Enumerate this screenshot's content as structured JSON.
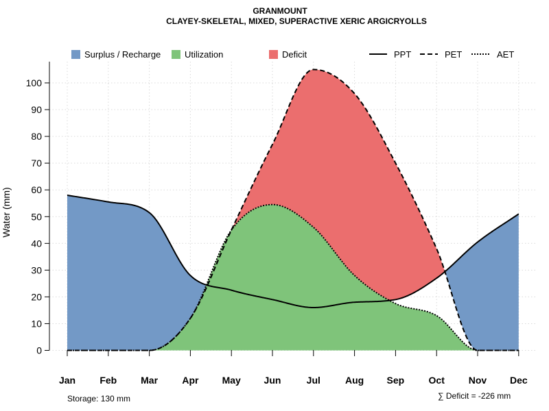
{
  "chart_data": {
    "type": "area",
    "title": "GRANMOUNT",
    "subtitle": "CLAYEY-SKELETAL, MIXED, SUPERACTIVE XERIC ARGICRYOLLS",
    "ylabel": "Water (mm)",
    "xlabel": "",
    "ylim": [
      0,
      108
    ],
    "yticks": [
      0,
      10,
      20,
      30,
      40,
      50,
      60,
      70,
      80,
      90,
      100
    ],
    "categories": [
      "Jan",
      "Feb",
      "Mar",
      "Apr",
      "May",
      "Jun",
      "Jul",
      "Aug",
      "Sep",
      "Oct",
      "Nov",
      "Dec"
    ],
    "series": [
      {
        "name": "PPT",
        "style": "solid",
        "values": [
          58,
          55.5,
          51.5,
          28,
          22.5,
          19,
          16,
          18,
          19,
          27,
          40.5,
          51
        ]
      },
      {
        "name": "PET",
        "style": "dashed",
        "values": [
          0,
          0,
          0,
          12,
          45,
          77,
          105,
          96,
          70,
          38,
          0,
          0
        ]
      },
      {
        "name": "AET",
        "style": "dotted",
        "values": [
          0,
          0,
          0,
          12,
          45,
          54.5,
          46,
          28,
          17.5,
          13,
          0,
          0
        ]
      }
    ],
    "fills": [
      {
        "name": "Surplus / Recharge",
        "color": "#7399c6"
      },
      {
        "name": "Utilization",
        "color": "#7fc47a"
      },
      {
        "name": "Deficit",
        "color": "#eb6e6e"
      }
    ],
    "legend": [
      "Surplus / Recharge",
      "Utilization",
      "Deficit",
      "PPT",
      "PET",
      "AET"
    ],
    "legend_position": "top",
    "grid": true,
    "storage_note": "Storage: 130 mm",
    "deficit_note": "∑ Deficit = -226 mm"
  }
}
